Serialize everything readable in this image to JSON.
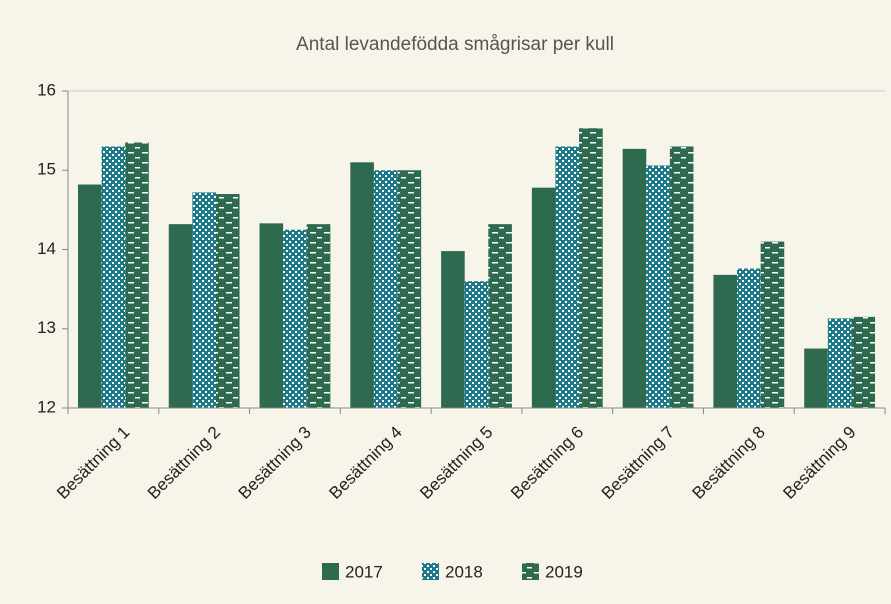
{
  "chart_data": {
    "type": "bar",
    "title": "Antal levandefödda smågrisar per kull",
    "categories": [
      "Besättning 1",
      "Besättning 2",
      "Besättning 3",
      "Besättning 4",
      "Besättning 5",
      "Besättning 6",
      "Besättning 7",
      "Besättning 8",
      "Besättning 9"
    ],
    "series": [
      {
        "name": "2017",
        "color": "#2d6a4f",
        "pattern": "solid",
        "values": [
          14.82,
          14.32,
          14.33,
          15.1,
          13.98,
          14.78,
          15.27,
          13.68,
          12.75
        ]
      },
      {
        "name": "2018",
        "color": "#1c7a8a",
        "pattern": "dots",
        "values": [
          15.3,
          14.72,
          14.25,
          15.0,
          13.6,
          15.3,
          15.06,
          13.76,
          13.13
        ]
      },
      {
        "name": "2019",
        "color": "#2d6a4f",
        "pattern": "dashes",
        "values": [
          15.35,
          14.7,
          14.32,
          15.0,
          14.32,
          15.53,
          15.3,
          14.1,
          13.15
        ]
      }
    ],
    "ylim": [
      12,
      16
    ],
    "yticks": [
      12,
      13,
      14,
      15,
      16
    ],
    "grid": false,
    "legend": "bottom"
  }
}
